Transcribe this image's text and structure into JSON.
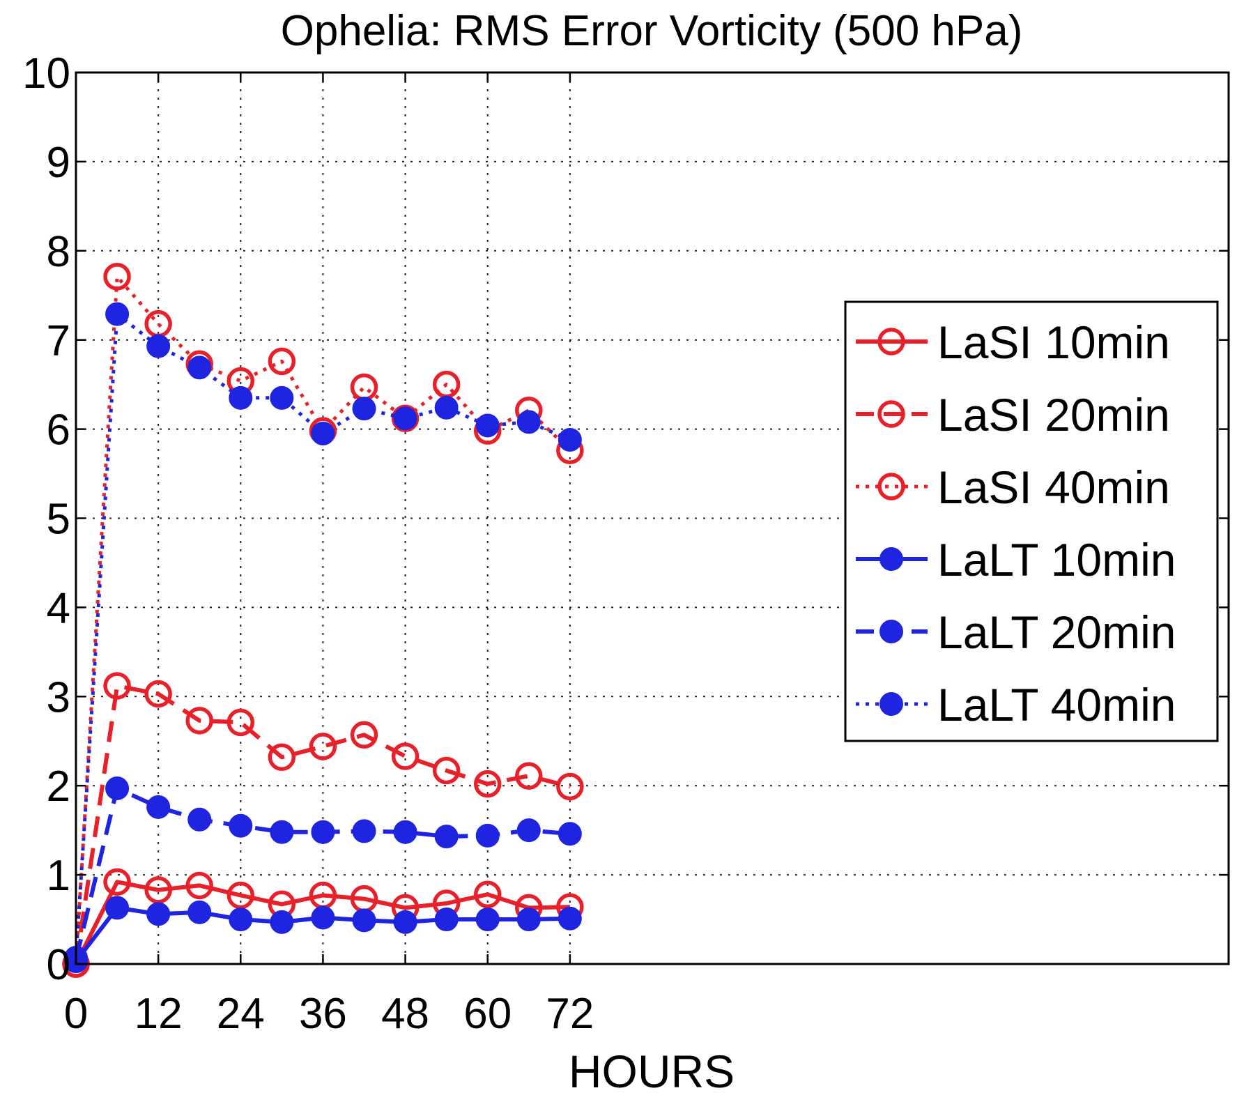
{
  "chart_data": {
    "type": "line",
    "title": "Ophelia: RMS Error Vorticity (500 hPa)",
    "xlabel": "HOURS",
    "ylabel": "",
    "xlim": [
      0,
      168
    ],
    "ylim": [
      0,
      10
    ],
    "xticks": [
      0,
      12,
      24,
      36,
      48,
      60,
      72
    ],
    "yticks": [
      0,
      1,
      2,
      3,
      4,
      5,
      6,
      7,
      8,
      9,
      10
    ],
    "grid": true,
    "legend_position": "right",
    "x": [
      0,
      6,
      12,
      18,
      24,
      30,
      36,
      42,
      48,
      54,
      60,
      66,
      72
    ],
    "series": [
      {
        "name": "LaSI 10min",
        "color": "#e8202a",
        "line_style": "solid",
        "marker": "open-circle",
        "values": [
          0.0,
          0.92,
          0.83,
          0.88,
          0.77,
          0.67,
          0.77,
          0.73,
          0.63,
          0.68,
          0.78,
          0.63,
          0.64
        ]
      },
      {
        "name": "LaSI 20min",
        "color": "#e8202a",
        "line_style": "dashed",
        "marker": "open-circle",
        "values": [
          0.0,
          3.12,
          3.03,
          2.73,
          2.71,
          2.32,
          2.44,
          2.57,
          2.33,
          2.17,
          2.02,
          2.11,
          1.99
        ]
      },
      {
        "name": "LaSI 40min",
        "color": "#e8202a",
        "line_style": "dotted",
        "marker": "open-circle",
        "values": [
          0.0,
          7.71,
          7.18,
          6.73,
          6.54,
          6.76,
          5.98,
          6.47,
          6.12,
          6.5,
          5.98,
          6.21,
          5.76
        ]
      },
      {
        "name": "LaLT 10min",
        "color": "#1f24e0",
        "line_style": "solid",
        "marker": "filled-circle",
        "values": [
          0.03,
          0.63,
          0.56,
          0.58,
          0.5,
          0.47,
          0.52,
          0.49,
          0.47,
          0.5,
          0.5,
          0.5,
          0.51
        ]
      },
      {
        "name": "LaLT 20min",
        "color": "#1f24e0",
        "line_style": "dashed",
        "marker": "filled-circle",
        "values": [
          0.05,
          1.97,
          1.76,
          1.62,
          1.55,
          1.48,
          1.48,
          1.49,
          1.48,
          1.43,
          1.44,
          1.5,
          1.46
        ]
      },
      {
        "name": "LaLT 40min",
        "color": "#1f24e0",
        "line_style": "dotted",
        "marker": "filled-circle",
        "values": [
          0.07,
          7.29,
          6.93,
          6.69,
          6.35,
          6.35,
          5.95,
          6.23,
          6.12,
          6.24,
          6.04,
          6.08,
          5.88
        ]
      }
    ]
  }
}
